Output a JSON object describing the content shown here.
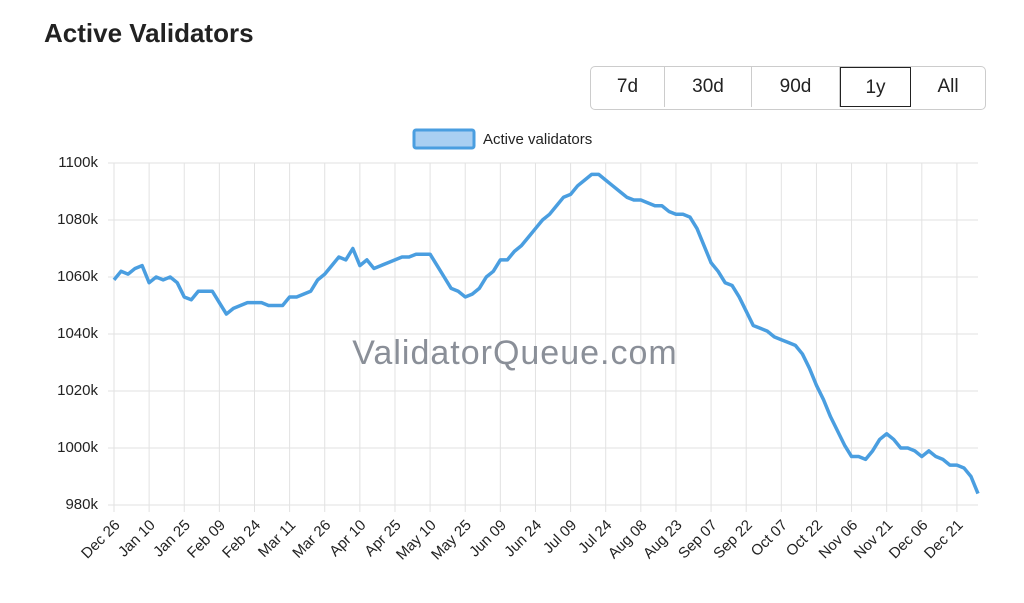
{
  "header": {
    "title": "Active Validators"
  },
  "range_buttons": {
    "options": [
      "7d",
      "30d",
      "90d",
      "1y",
      "All"
    ],
    "selected_index": 3
  },
  "chart_data": {
    "type": "line",
    "watermark": "ValidatorQueue.com",
    "categories": [
      "Dec 26",
      null,
      null,
      null,
      null,
      "Jan 10",
      null,
      null,
      null,
      null,
      "Jan 25",
      null,
      null,
      null,
      null,
      "Feb 09",
      null,
      null,
      null,
      null,
      "Feb 24",
      null,
      null,
      null,
      null,
      "Mar 11",
      null,
      null,
      null,
      null,
      "Mar 26",
      null,
      null,
      null,
      null,
      "Apr 10",
      null,
      null,
      null,
      null,
      "Apr 25",
      null,
      null,
      null,
      null,
      "May 10",
      null,
      null,
      null,
      null,
      "May 25",
      null,
      null,
      null,
      null,
      "Jun 09",
      null,
      null,
      null,
      null,
      "Jun 24",
      null,
      null,
      null,
      null,
      "Jul 09",
      null,
      null,
      null,
      null,
      "Jul 24",
      null,
      null,
      null,
      null,
      "Aug 08",
      null,
      null,
      null,
      null,
      "Aug 23",
      null,
      null,
      null,
      null,
      "Sep 07",
      null,
      null,
      null,
      null,
      "Sep 22",
      null,
      null,
      null,
      null,
      "Oct 07",
      null,
      null,
      null,
      null,
      "Oct 22",
      null,
      null,
      null,
      null,
      "Nov 06",
      null,
      null,
      null,
      null,
      "Nov 21",
      null,
      null,
      null,
      null,
      "Dec 06",
      null,
      null,
      null,
      null,
      "Dec 21",
      null,
      null,
      null
    ],
    "series": [
      {
        "name": "Active validators",
        "color": "#4a9ee0",
        "fill": "#a9cff2",
        "values": [
          1059000,
          1062000,
          1061000,
          1063000,
          1064000,
          1058000,
          1060000,
          1059000,
          1060000,
          1058000,
          1053000,
          1052000,
          1055000,
          1055000,
          1055000,
          1051000,
          1047000,
          1049000,
          1050000,
          1051000,
          1051000,
          1051000,
          1050000,
          1050000,
          1050000,
          1053000,
          1053000,
          1054000,
          1055000,
          1059000,
          1061000,
          1064000,
          1067000,
          1066000,
          1070000,
          1064000,
          1066000,
          1063000,
          1064000,
          1065000,
          1066000,
          1067000,
          1067000,
          1068000,
          1068000,
          1068000,
          1064000,
          1060000,
          1056000,
          1055000,
          1053000,
          1054000,
          1056000,
          1060000,
          1062000,
          1066000,
          1066000,
          1069000,
          1071000,
          1074000,
          1077000,
          1080000,
          1082000,
          1085000,
          1088000,
          1089000,
          1092000,
          1094000,
          1096000,
          1096000,
          1094000,
          1092000,
          1090000,
          1088000,
          1087000,
          1087000,
          1086000,
          1085000,
          1085000,
          1083000,
          1082000,
          1082000,
          1081000,
          1077000,
          1071000,
          1065000,
          1062000,
          1058000,
          1057000,
          1053000,
          1048000,
          1043000,
          1042000,
          1041000,
          1039000,
          1038000,
          1037000,
          1036000,
          1033000,
          1028000,
          1022000,
          1017000,
          1011000,
          1006000,
          1001000,
          997000,
          997000,
          996000,
          999000,
          1003000,
          1005000,
          1003000,
          1000000,
          1000000,
          999000,
          997000,
          999000,
          997000,
          996000,
          994000,
          994000,
          993000,
          990000,
          984000
        ]
      }
    ],
    "ylim": [
      980000,
      1100000
    ],
    "yticks": [
      {
        "value": 980000,
        "label": "980k"
      },
      {
        "value": 1000000,
        "label": "1000k"
      },
      {
        "value": 1020000,
        "label": "1020k"
      },
      {
        "value": 1040000,
        "label": "1040k"
      },
      {
        "value": 1060000,
        "label": "1060k"
      },
      {
        "value": 1080000,
        "label": "1080k"
      },
      {
        "value": 1100000,
        "label": "1100k"
      }
    ],
    "grid": true,
    "legend": "top"
  }
}
